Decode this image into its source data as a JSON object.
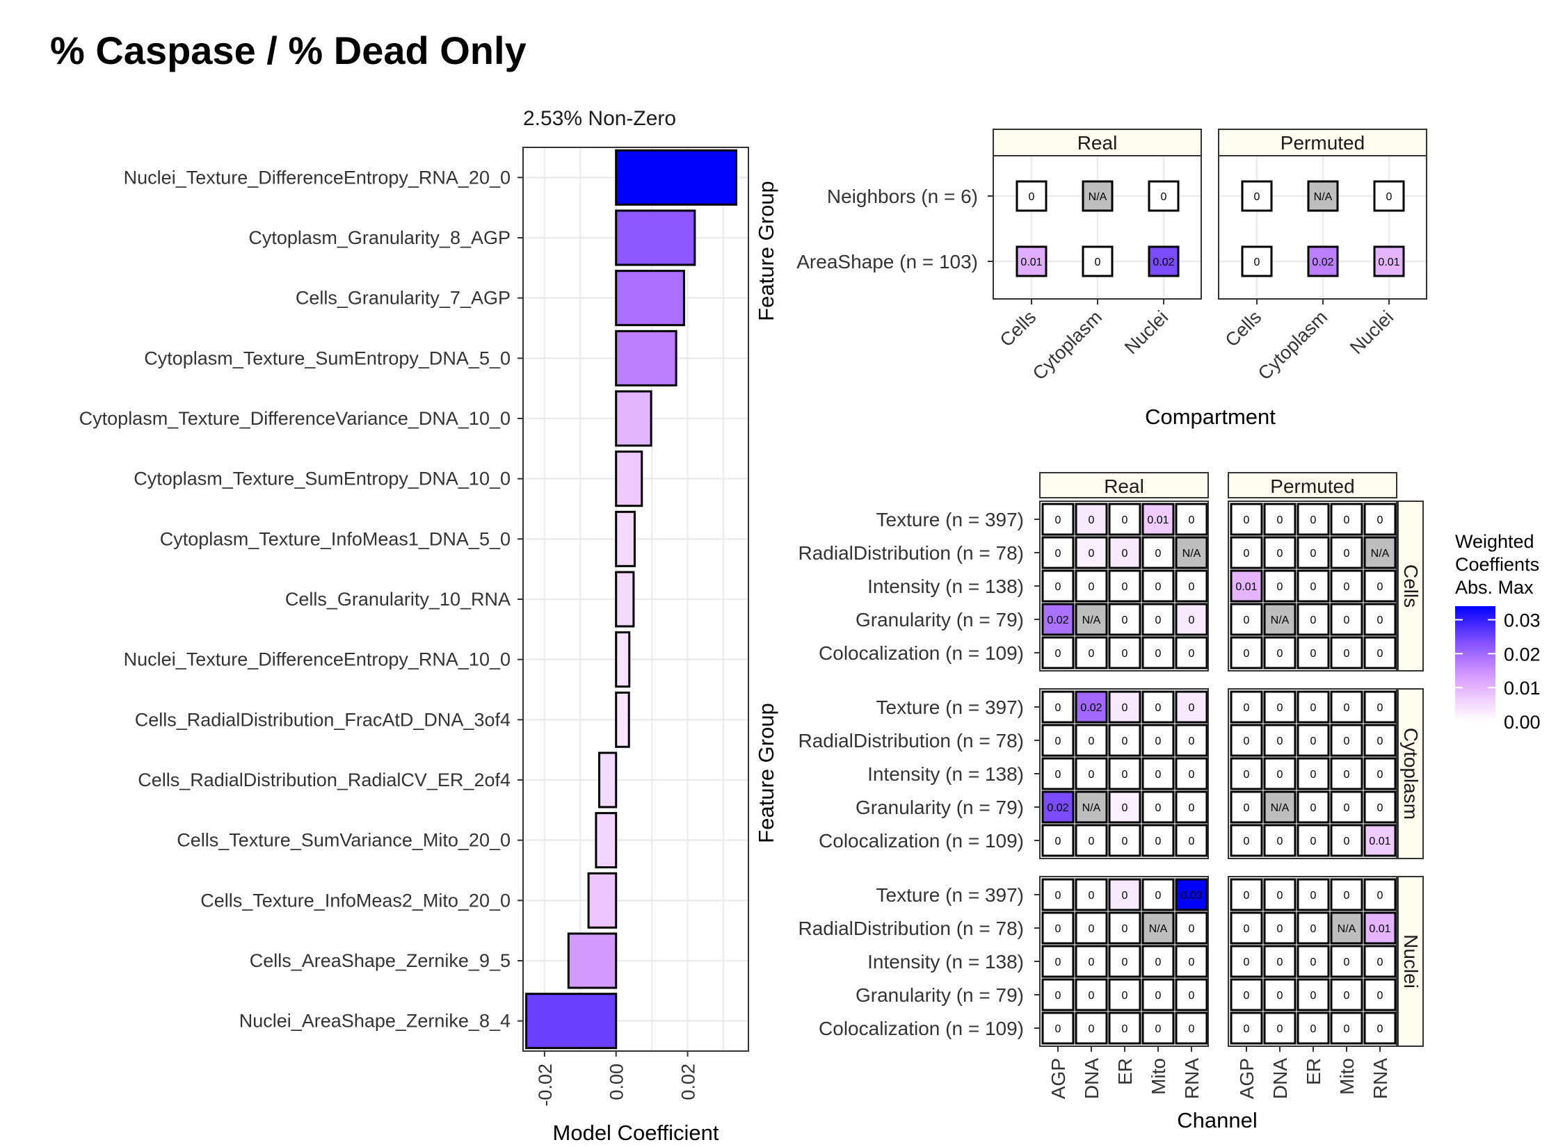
{
  "title": "% Caspase / % Dead Only",
  "colors": {
    "low": "#ffffff",
    "high": "#0000ff",
    "na": "#bebebe",
    "grid": "#ebebeb",
    "strip": "#fdfdf0"
  },
  "chart_data": [
    {
      "type": "bar",
      "orientation": "horizontal",
      "subtitle": "2.53% Non-Zero",
      "xlabel": "Model Coefficient",
      "ylabel": "Feature Group",
      "xlim": [
        -0.026,
        0.037
      ],
      "xticks": [
        -0.02,
        0.0,
        0.02
      ],
      "xtick_labels": [
        "-0.02",
        "0.00",
        "0.02"
      ],
      "grid": true,
      "categories": [
        "Nuclei_Texture_DifferenceEntropy_RNA_20_0",
        "Cytoplasm_Granularity_8_AGP",
        "Cells_Granularity_7_AGP",
        "Cytoplasm_Texture_SumEntropy_DNA_5_0",
        "Cytoplasm_Texture_DifferenceVariance_DNA_10_0",
        "Cytoplasm_Texture_SumEntropy_DNA_10_0",
        "Cytoplasm_Texture_InfoMeas1_DNA_5_0",
        "Cells_Granularity_10_RNA",
        "Nuclei_Texture_DifferenceEntropy_RNA_10_0",
        "Cells_RadialDistribution_FracAtD_DNA_3of4",
        "Cells_RadialDistribution_RadialCV_ER_2of4",
        "Cells_Texture_SumVariance_Mito_20_0",
        "Cells_Texture_InfoMeas2_Mito_20_0",
        "Cells_AreaShape_Zernike_9_5",
        "Nuclei_AreaShape_Zernike_8_4"
      ],
      "values": [
        0.0336,
        0.022,
        0.019,
        0.0168,
        0.0098,
        0.0072,
        0.0052,
        0.0049,
        0.0037,
        0.0036,
        -0.0047,
        -0.0056,
        -0.0077,
        -0.0133,
        -0.0251
      ]
    },
    {
      "type": "heatmap",
      "xlabel": "Compartment",
      "ylabel": "Feature Group",
      "facets": [
        "Real",
        "Permuted"
      ],
      "x": [
        "Cells",
        "Cytoplasm",
        "Nuclei"
      ],
      "y": [
        "Neighbors (n = 6)",
        "AreaShape (n = 103)"
      ],
      "cells": {
        "Real": [
          [
            {
              "v": 0,
              "t": "0"
            },
            {
              "v": null,
              "t": "N/A"
            },
            {
              "v": 0,
              "t": "0"
            }
          ],
          [
            {
              "v": 0.011,
              "t": "0.01"
            },
            {
              "v": 0,
              "t": "0"
            },
            {
              "v": 0.024,
              "t": "0.02"
            }
          ]
        ],
        "Permuted": [
          [
            {
              "v": 0,
              "t": "0"
            },
            {
              "v": null,
              "t": "N/A"
            },
            {
              "v": 0,
              "t": "0"
            }
          ],
          [
            {
              "v": 0,
              "t": "0"
            },
            {
              "v": 0.017,
              "t": "0.02"
            },
            {
              "v": 0.01,
              "t": "0.01"
            }
          ]
        ]
      }
    },
    {
      "type": "heatmap",
      "xlabel": "Channel",
      "ylabel": "Feature Group",
      "col_facets": [
        "Real",
        "Permuted"
      ],
      "row_facets": [
        "Cells",
        "Cytoplasm",
        "Nuclei"
      ],
      "x": [
        "AGP",
        "DNA",
        "ER",
        "Mito",
        "RNA"
      ],
      "y": [
        "Texture (n = 397)",
        "RadialDistribution (n = 78)",
        "Intensity (n = 138)",
        "Granularity (n = 79)",
        "Colocalization (n = 109)"
      ],
      "cells": {
        "Cells": {
          "Real": [
            [
              {
                "v": 0,
                "t": "0"
              },
              {
                "v": 0.003,
                "t": "0"
              },
              {
                "v": 0,
                "t": "0"
              },
              {
                "v": 0.007,
                "t": "0.01"
              },
              {
                "v": 0,
                "t": "0"
              }
            ],
            [
              {
                "v": 0,
                "t": "0"
              },
              {
                "v": 0.002,
                "t": "0"
              },
              {
                "v": 0.003,
                "t": "0"
              },
              {
                "v": 0,
                "t": "0"
              },
              {
                "v": null,
                "t": "N/A"
              }
            ],
            [
              {
                "v": 0,
                "t": "0"
              },
              {
                "v": 0,
                "t": "0"
              },
              {
                "v": 0,
                "t": "0"
              },
              {
                "v": 0,
                "t": "0"
              },
              {
                "v": 0,
                "t": "0"
              }
            ],
            [
              {
                "v": 0.019,
                "t": "0.02"
              },
              {
                "v": null,
                "t": "N/A"
              },
              {
                "v": 0,
                "t": "0"
              },
              {
                "v": 0,
                "t": "0"
              },
              {
                "v": 0.003,
                "t": "0"
              }
            ],
            [
              {
                "v": 0,
                "t": "0"
              },
              {
                "v": 0,
                "t": "0"
              },
              {
                "v": 0,
                "t": "0"
              },
              {
                "v": 0,
                "t": "0"
              },
              {
                "v": 0,
                "t": "0"
              }
            ]
          ],
          "Permuted": [
            [
              {
                "v": 0,
                "t": "0"
              },
              {
                "v": 0,
                "t": "0"
              },
              {
                "v": 0,
                "t": "0"
              },
              {
                "v": 0,
                "t": "0"
              },
              {
                "v": 0,
                "t": "0"
              }
            ],
            [
              {
                "v": 0,
                "t": "0"
              },
              {
                "v": 0,
                "t": "0"
              },
              {
                "v": 0,
                "t": "0"
              },
              {
                "v": 0,
                "t": "0"
              },
              {
                "v": null,
                "t": "N/A"
              }
            ],
            [
              {
                "v": 0.01,
                "t": "0.01"
              },
              {
                "v": 0,
                "t": "0"
              },
              {
                "v": 0,
                "t": "0"
              },
              {
                "v": 0,
                "t": "0"
              },
              {
                "v": 0,
                "t": "0"
              }
            ],
            [
              {
                "v": 0,
                "t": "0"
              },
              {
                "v": null,
                "t": "N/A"
              },
              {
                "v": 0,
                "t": "0"
              },
              {
                "v": 0,
                "t": "0"
              },
              {
                "v": 0,
                "t": "0"
              }
            ],
            [
              {
                "v": 0,
                "t": "0"
              },
              {
                "v": 0,
                "t": "0"
              },
              {
                "v": 0,
                "t": "0"
              },
              {
                "v": 0,
                "t": "0"
              },
              {
                "v": 0,
                "t": "0"
              }
            ]
          ]
        },
        "Cytoplasm": {
          "Real": [
            [
              {
                "v": 0,
                "t": "0"
              },
              {
                "v": 0.02,
                "t": "0.02"
              },
              {
                "v": 0.003,
                "t": "0"
              },
              {
                "v": 0,
                "t": "0"
              },
              {
                "v": 0.003,
                "t": "0"
              }
            ],
            [
              {
                "v": 0,
                "t": "0"
              },
              {
                "v": 0,
                "t": "0"
              },
              {
                "v": 0,
                "t": "0"
              },
              {
                "v": 0,
                "t": "0"
              },
              {
                "v": 0,
                "t": "0"
              }
            ],
            [
              {
                "v": 0,
                "t": "0"
              },
              {
                "v": 0,
                "t": "0"
              },
              {
                "v": 0,
                "t": "0"
              },
              {
                "v": 0,
                "t": "0"
              },
              {
                "v": 0,
                "t": "0"
              }
            ],
            [
              {
                "v": 0.024,
                "t": "0.02"
              },
              {
                "v": null,
                "t": "N/A"
              },
              {
                "v": 0.002,
                "t": "0"
              },
              {
                "v": 0,
                "t": "0"
              },
              {
                "v": 0,
                "t": "0"
              }
            ],
            [
              {
                "v": 0,
                "t": "0"
              },
              {
                "v": 0,
                "t": "0"
              },
              {
                "v": 0,
                "t": "0"
              },
              {
                "v": 0,
                "t": "0"
              },
              {
                "v": 0,
                "t": "0"
              }
            ]
          ],
          "Permuted": [
            [
              {
                "v": 0,
                "t": "0"
              },
              {
                "v": 0,
                "t": "0"
              },
              {
                "v": 0,
                "t": "0"
              },
              {
                "v": 0,
                "t": "0"
              },
              {
                "v": 0,
                "t": "0"
              }
            ],
            [
              {
                "v": 0,
                "t": "0"
              },
              {
                "v": 0,
                "t": "0"
              },
              {
                "v": 0,
                "t": "0"
              },
              {
                "v": 0,
                "t": "0"
              },
              {
                "v": 0,
                "t": "0"
              }
            ],
            [
              {
                "v": 0,
                "t": "0"
              },
              {
                "v": 0,
                "t": "0"
              },
              {
                "v": 0,
                "t": "0"
              },
              {
                "v": 0,
                "t": "0"
              },
              {
                "v": 0,
                "t": "0"
              }
            ],
            [
              {
                "v": 0,
                "t": "0"
              },
              {
                "v": null,
                "t": "N/A"
              },
              {
                "v": 0,
                "t": "0"
              },
              {
                "v": 0,
                "t": "0"
              },
              {
                "v": 0,
                "t": "0"
              }
            ],
            [
              {
                "v": 0,
                "t": "0"
              },
              {
                "v": 0,
                "t": "0"
              },
              {
                "v": 0,
                "t": "0"
              },
              {
                "v": 0,
                "t": "0"
              },
              {
                "v": 0.007,
                "t": "0.01"
              }
            ]
          ]
        },
        "Nuclei": {
          "Real": [
            [
              {
                "v": 0,
                "t": "0"
              },
              {
                "v": 0,
                "t": "0"
              },
              {
                "v": 0.003,
                "t": "0"
              },
              {
                "v": 0,
                "t": "0"
              },
              {
                "v": 0.034,
                "t": "0.03"
              }
            ],
            [
              {
                "v": 0,
                "t": "0"
              },
              {
                "v": 0,
                "t": "0"
              },
              {
                "v": 0,
                "t": "0"
              },
              {
                "v": null,
                "t": "N/A"
              },
              {
                "v": 0,
                "t": "0"
              }
            ],
            [
              {
                "v": 0,
                "t": "0"
              },
              {
                "v": 0,
                "t": "0"
              },
              {
                "v": 0,
                "t": "0"
              },
              {
                "v": 0,
                "t": "0"
              },
              {
                "v": 0,
                "t": "0"
              }
            ],
            [
              {
                "v": 0,
                "t": "0"
              },
              {
                "v": 0,
                "t": "0"
              },
              {
                "v": 0,
                "t": "0"
              },
              {
                "v": 0,
                "t": "0"
              },
              {
                "v": 0,
                "t": "0"
              }
            ],
            [
              {
                "v": 0,
                "t": "0"
              },
              {
                "v": 0,
                "t": "0"
              },
              {
                "v": 0,
                "t": "0"
              },
              {
                "v": 0,
                "t": "0"
              },
              {
                "v": 0,
                "t": "0"
              }
            ]
          ],
          "Permuted": [
            [
              {
                "v": 0,
                "t": "0"
              },
              {
                "v": 0,
                "t": "0"
              },
              {
                "v": 0,
                "t": "0"
              },
              {
                "v": 0,
                "t": "0"
              },
              {
                "v": 0,
                "t": "0"
              }
            ],
            [
              {
                "v": 0,
                "t": "0"
              },
              {
                "v": 0,
                "t": "0"
              },
              {
                "v": 0,
                "t": "0"
              },
              {
                "v": null,
                "t": "N/A"
              },
              {
                "v": 0.01,
                "t": "0.01"
              }
            ],
            [
              {
                "v": 0,
                "t": "0"
              },
              {
                "v": 0,
                "t": "0"
              },
              {
                "v": 0,
                "t": "0"
              },
              {
                "v": 0,
                "t": "0"
              },
              {
                "v": 0,
                "t": "0"
              }
            ],
            [
              {
                "v": 0,
                "t": "0"
              },
              {
                "v": 0,
                "t": "0"
              },
              {
                "v": 0,
                "t": "0"
              },
              {
                "v": 0,
                "t": "0"
              },
              {
                "v": 0,
                "t": "0"
              }
            ],
            [
              {
                "v": 0,
                "t": "0"
              },
              {
                "v": 0,
                "t": "0"
              },
              {
                "v": 0,
                "t": "0"
              },
              {
                "v": 0,
                "t": "0"
              },
              {
                "v": 0,
                "t": "0"
              }
            ]
          ]
        }
      }
    }
  ],
  "legend": {
    "title_lines": [
      "Weighted",
      "Coeffients",
      "Abs. Max"
    ],
    "max": 0.034,
    "ticks": [
      0.0,
      0.01,
      0.02,
      0.03
    ],
    "tick_labels": [
      "0.00",
      "0.01",
      "0.02",
      "0.03"
    ]
  }
}
